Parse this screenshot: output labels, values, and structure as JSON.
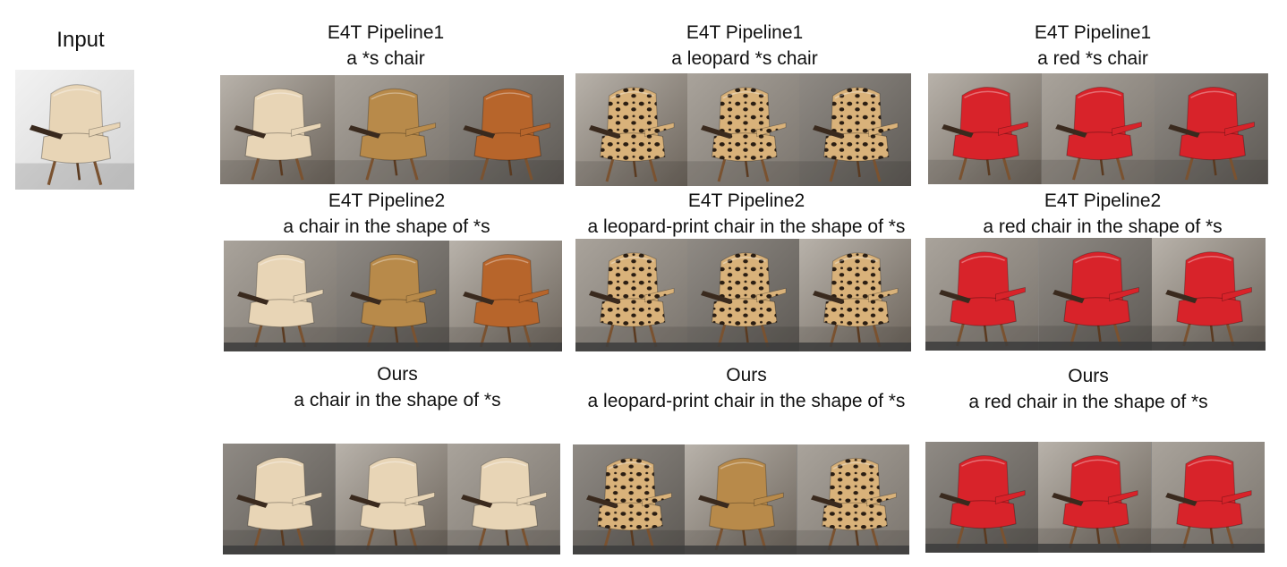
{
  "input": {
    "title": "Input"
  },
  "palette": {
    "beige": "#e8d5b6",
    "tan": "#b88a4a",
    "cognac": "#b7652b",
    "red": "#d8232a",
    "leopard_base": "#d9b27a",
    "leopard_spot": "#2a1d12"
  },
  "rows": [
    {
      "columns": [
        {
          "title": "E4T Pipeline1",
          "prompt": "a *s chair",
          "cells": [
            "beige",
            "tan",
            "cognac"
          ]
        },
        {
          "title": "E4T Pipeline1",
          "prompt": "a leopard *s chair",
          "cells": [
            "leopard",
            "leopard",
            "leopard"
          ]
        },
        {
          "title": "E4T Pipeline1",
          "prompt": "a red *s chair",
          "cells": [
            "red",
            "red",
            "red"
          ]
        }
      ]
    },
    {
      "columns": [
        {
          "title": "E4T Pipeline2",
          "prompt": "a  chair in the shape of *s",
          "cells": [
            "beige",
            "tan",
            "cognac"
          ]
        },
        {
          "title": "E4T Pipeline2",
          "prompt": "a  leopard-print chair in the shape of *s",
          "cells": [
            "leopard",
            "leopard",
            "leopard"
          ]
        },
        {
          "title": "E4T Pipeline2",
          "prompt": "a  red chair in the shape of *s",
          "cells": [
            "red",
            "red",
            "red"
          ]
        }
      ]
    },
    {
      "columns": [
        {
          "title": "Ours",
          "prompt": "a chair in the shape of *s",
          "cells": [
            "beige",
            "beige",
            "beige"
          ]
        },
        {
          "title": "Ours",
          "prompt": "a leopard-print chair in the shape of *s",
          "cells": [
            "leopard",
            "tan",
            "leopard"
          ]
        },
        {
          "title": "Ours",
          "prompt": "a red chair in the shape of *s",
          "cells": [
            "red",
            "red",
            "red"
          ]
        }
      ]
    }
  ]
}
